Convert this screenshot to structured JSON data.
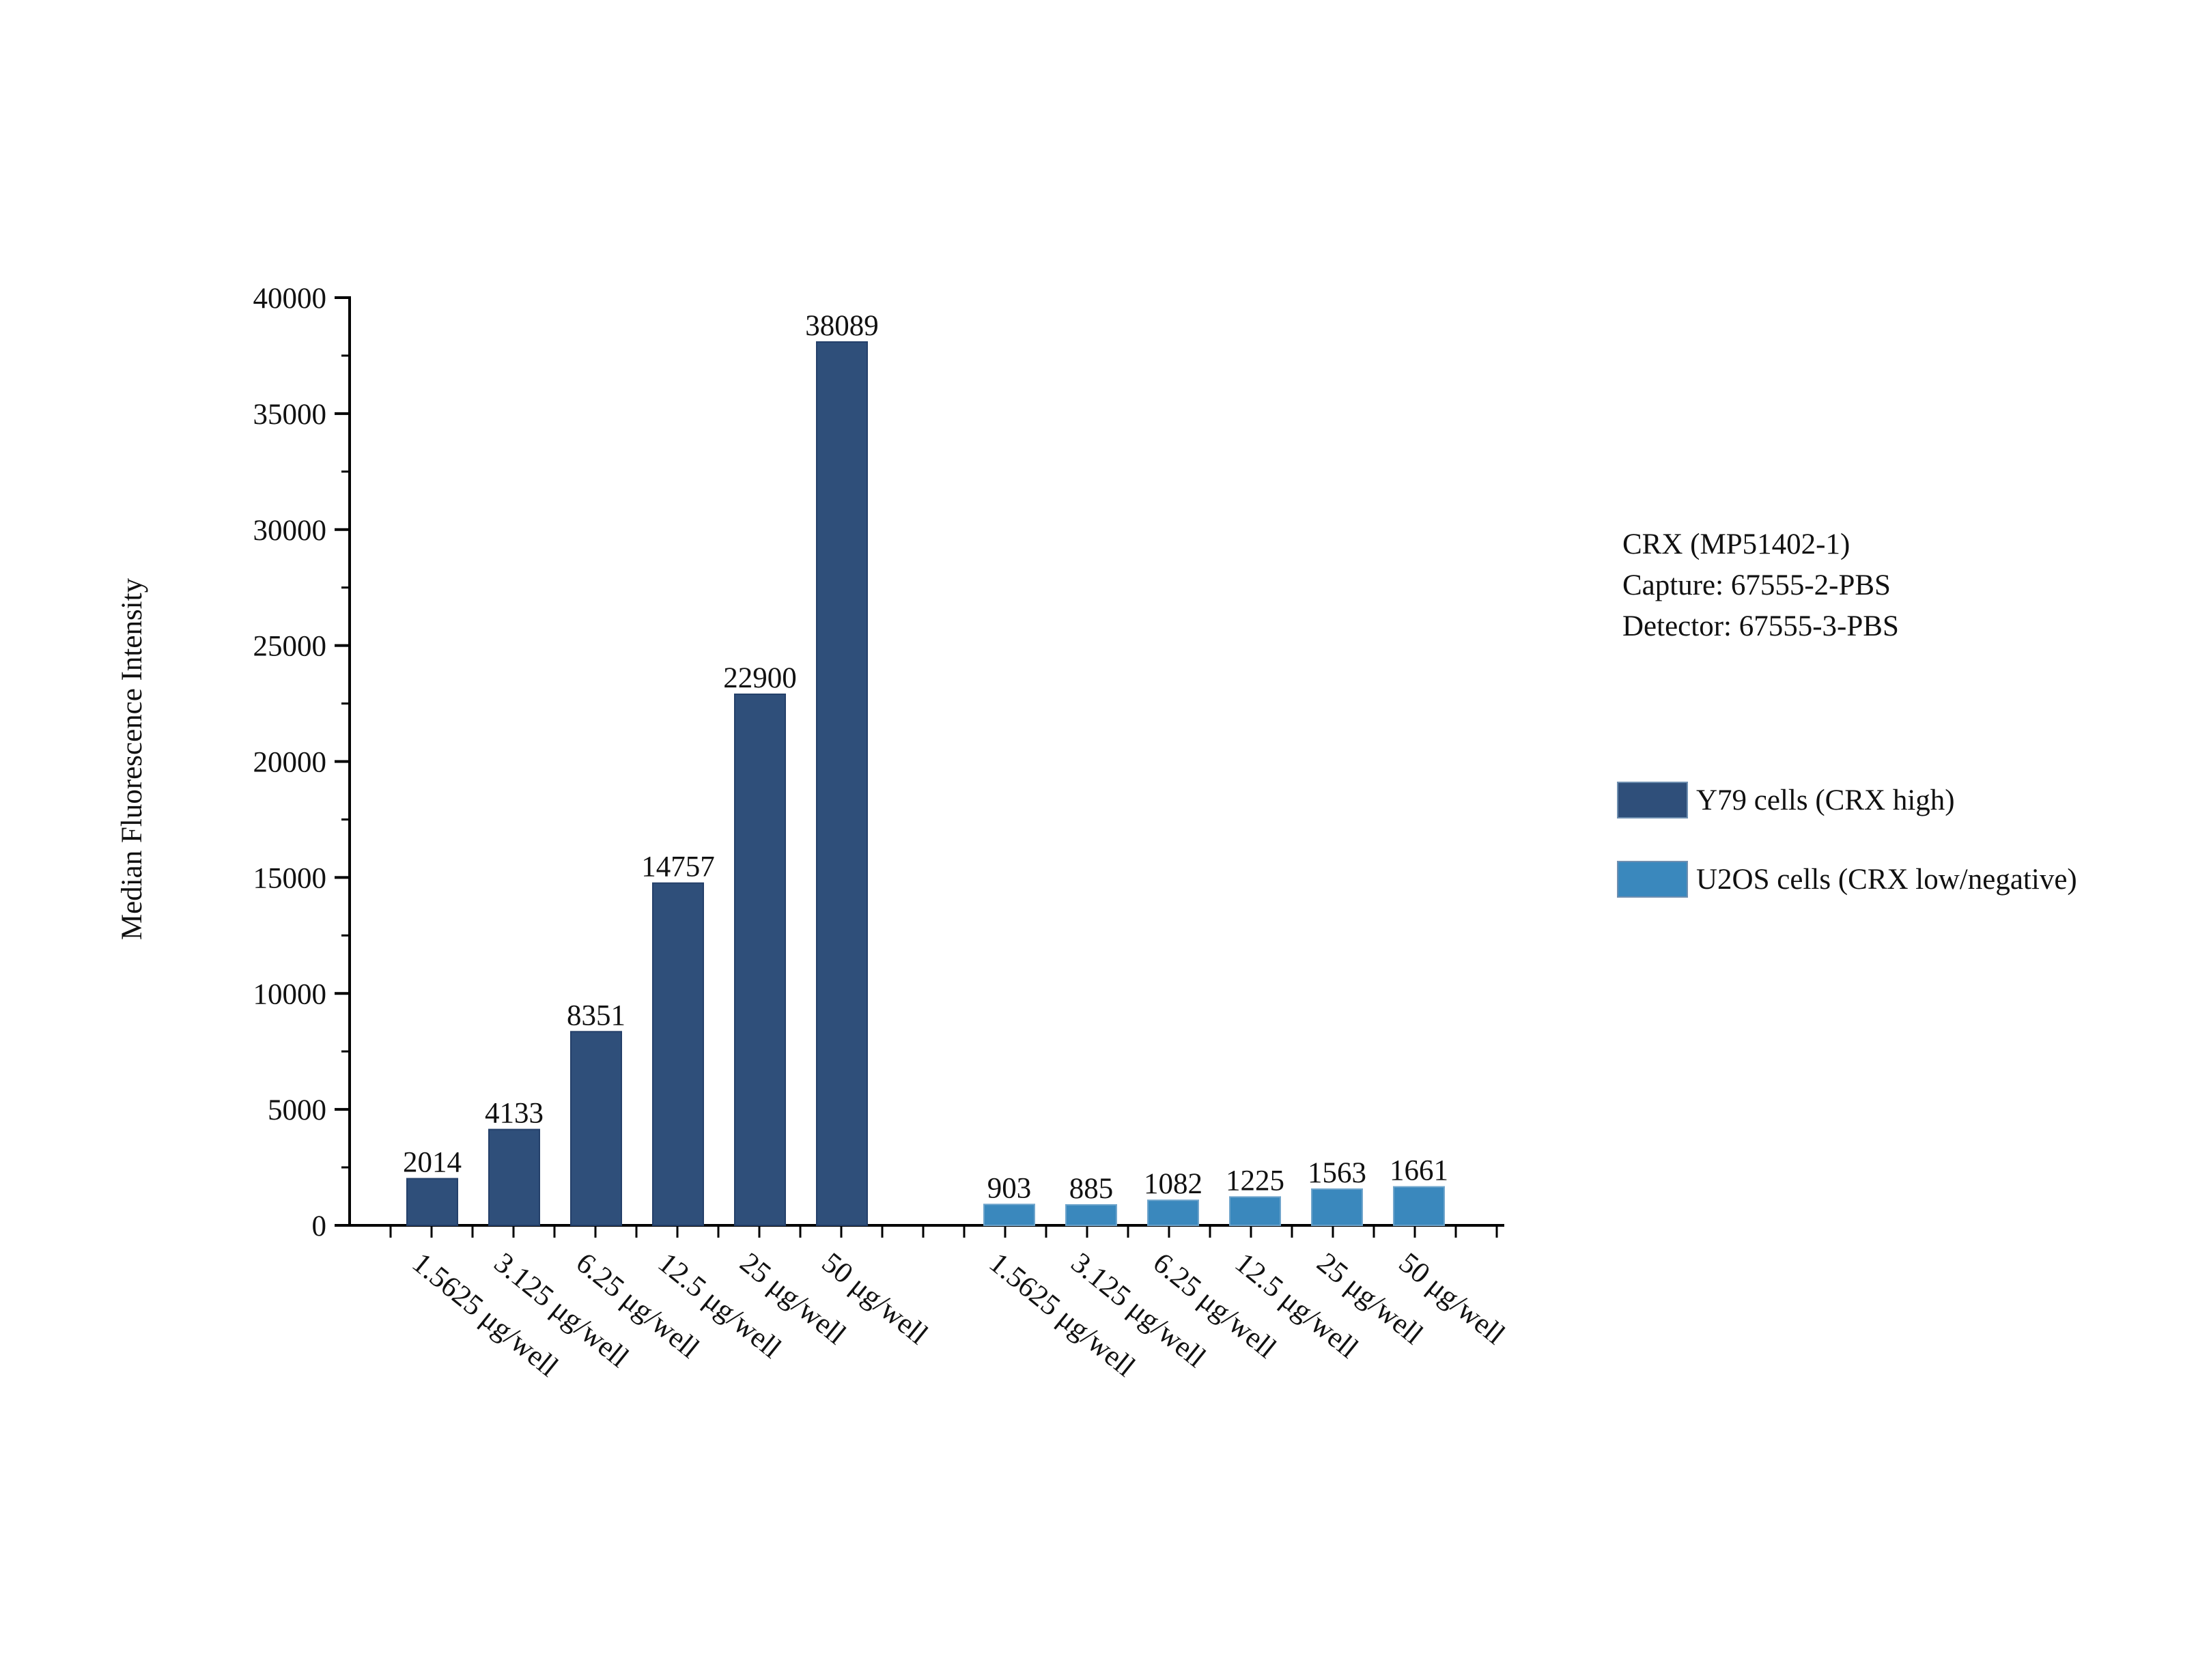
{
  "chart_data": {
    "type": "bar",
    "title": "",
    "ylabel": "Median Fluorescence Intensity",
    "xlabel": "",
    "ylim": [
      0,
      40000
    ],
    "yticks": [
      0,
      5000,
      10000,
      15000,
      20000,
      25000,
      30000,
      35000,
      40000
    ],
    "groups": [
      {
        "name": "Y79 cells (CRX high)",
        "color": "#2f4f7a",
        "categories": [
          "1.5625 μg/well",
          "3.125 μg/well",
          "6.25 μg/well",
          "12.5 μg/well",
          "25 μg/well",
          "50 μg/well"
        ],
        "values": [
          2014,
          4133,
          8351,
          14757,
          22900,
          38089
        ]
      },
      {
        "name": "U2OS cells (CRX low/negative)",
        "color": "#3a88bd",
        "categories": [
          "1.5625 μg/well",
          "3.125 μg/well",
          "6.25 μg/well",
          "12.5 μg/well",
          "25 μg/well",
          "50 μg/well"
        ],
        "values": [
          903,
          885,
          1082,
          1225,
          1563,
          1661
        ]
      }
    ],
    "legend_position": "right"
  },
  "info": {
    "line1": "CRX (MP51402-1)",
    "line2": "Capture: 67555-2-PBS",
    "line3": "Detector: 67555-3-PBS"
  },
  "legend": {
    "items": [
      {
        "label": "Y79 cells (CRX high)",
        "color": "#2f4f7a"
      },
      {
        "label": "U2OS cells (CRX low/negative)",
        "color": "#3a88bd"
      }
    ]
  }
}
